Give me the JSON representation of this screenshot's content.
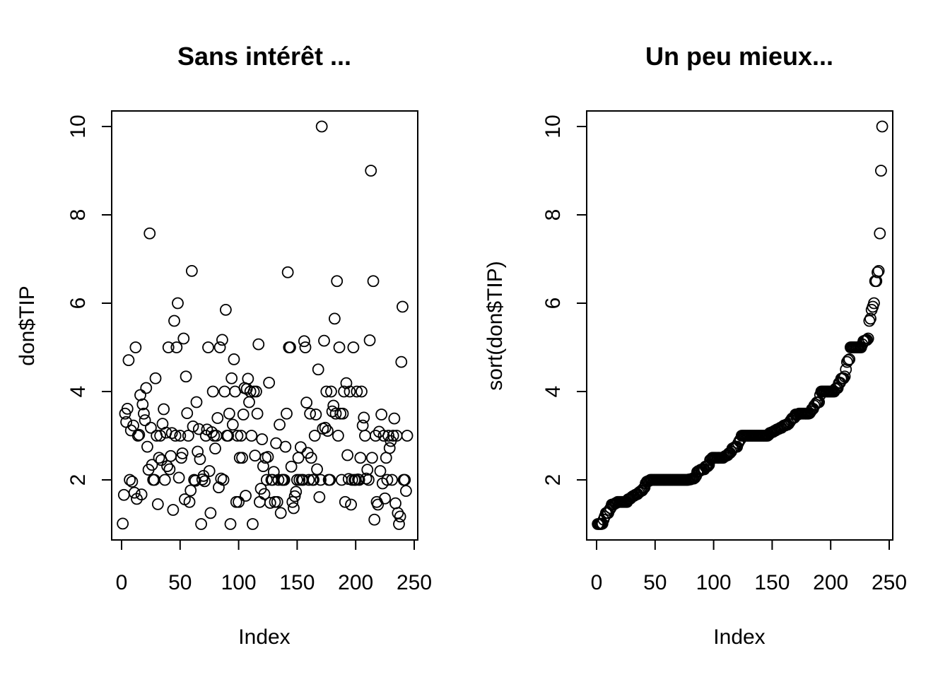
{
  "chart_data": [
    {
      "type": "scatter",
      "title": "Sans intérêt ...",
      "xlabel": "Index",
      "ylabel": "don$TIP",
      "xlim": [
        0,
        250
      ],
      "ylim": [
        1,
        10
      ],
      "x_ticks": [
        "0",
        "50",
        "100",
        "150",
        "200",
        "250"
      ],
      "y_ticks": [
        "2",
        "4",
        "6",
        "8",
        "10"
      ],
      "grid": false,
      "marker": "open-circle",
      "series": [
        {
          "x": [
            1,
            2,
            3,
            4,
            5,
            6,
            7,
            8,
            9,
            10,
            11,
            12,
            13,
            14,
            15,
            16,
            17,
            18,
            19,
            20,
            21,
            22,
            23,
            24,
            25,
            26,
            27,
            28,
            29,
            30,
            31,
            32,
            33,
            34,
            35,
            36,
            37,
            38,
            39,
            40,
            41,
            42,
            43,
            44,
            45,
            46,
            47,
            48,
            49,
            50,
            51,
            52,
            53,
            54,
            55,
            56,
            57,
            58,
            59,
            60,
            61,
            62,
            63,
            64,
            65,
            66,
            67,
            68,
            69,
            70,
            71,
            72,
            73,
            74,
            75,
            76,
            77,
            78,
            79,
            80,
            81,
            82,
            83,
            84,
            85,
            86,
            87,
            88,
            89,
            90,
            91,
            92,
            93,
            94,
            95,
            96,
            97,
            98,
            99,
            100,
            101,
            102,
            103,
            104,
            105,
            106,
            107,
            108,
            109,
            110,
            111,
            112,
            113,
            114,
            115,
            116,
            117,
            118,
            119,
            120,
            121,
            122,
            123,
            124,
            125,
            126,
            127,
            128,
            129,
            130,
            131,
            132,
            133,
            134,
            135,
            136,
            137,
            138,
            139,
            140,
            141,
            142,
            143,
            144,
            145,
            146,
            147,
            148,
            149,
            150,
            151,
            152,
            153,
            154,
            155,
            156,
            157,
            158,
            159,
            160,
            161,
            162,
            163,
            164,
            165,
            166,
            167,
            168,
            169,
            170,
            171,
            172,
            173,
            174,
            175,
            176,
            177,
            178,
            179,
            180,
            181,
            182,
            183,
            184,
            185,
            186,
            187,
            188,
            189,
            190,
            191,
            192,
            193,
            194,
            195,
            196,
            197,
            198,
            199,
            200,
            201,
            202,
            203,
            204,
            205,
            206,
            207,
            208,
            209,
            210,
            211,
            212,
            213,
            214,
            215,
            216,
            217,
            218,
            219,
            220,
            221,
            222,
            223,
            224,
            225,
            226,
            227,
            228,
            229,
            230,
            231,
            232,
            233,
            234,
            235,
            236,
            237,
            238,
            239,
            240,
            241,
            242,
            243,
            244
          ],
          "y": [
            1.01,
            1.66,
            3.5,
            3.31,
            3.61,
            4.71,
            2.0,
            3.12,
            1.96,
            3.23,
            1.71,
            5.0,
            1.57,
            3.0,
            3.02,
            3.92,
            1.67,
            3.71,
            3.5,
            3.35,
            4.08,
            2.75,
            2.23,
            7.58,
            3.18,
            2.34,
            2.0,
            2.0,
            4.3,
            3.0,
            1.45,
            2.5,
            3.0,
            2.45,
            3.27,
            3.6,
            2.0,
            3.07,
            2.31,
            5.0,
            2.24,
            2.54,
            3.06,
            1.32,
            5.6,
            3.0,
            5.0,
            6.0,
            2.05,
            3.0,
            2.5,
            2.6,
            5.2,
            1.56,
            4.34,
            3.51,
            3.0,
            1.5,
            1.76,
            6.73,
            3.21,
            2.0,
            1.98,
            3.76,
            2.64,
            3.15,
            2.47,
            1.0,
            2.01,
            2.09,
            1.97,
            3.0,
            3.14,
            5.0,
            2.2,
            1.25,
            3.08,
            4.0,
            3.0,
            2.71,
            3.0,
            3.4,
            1.83,
            5.0,
            2.03,
            5.17,
            2.0,
            4.0,
            5.85,
            3.0,
            3.0,
            3.5,
            1.0,
            4.3,
            3.25,
            4.73,
            4.0,
            1.5,
            3.0,
            1.5,
            2.5,
            3.0,
            2.5,
            3.48,
            4.08,
            1.64,
            4.06,
            4.29,
            3.76,
            4.0,
            3.0,
            1.0,
            4.0,
            2.55,
            4.0,
            3.5,
            5.07,
            1.5,
            1.8,
            2.92,
            2.31,
            1.68,
            2.5,
            2.0,
            2.52,
            4.2,
            1.48,
            2.0,
            2.0,
            2.18,
            1.5,
            2.83,
            1.5,
            2.0,
            3.25,
            1.25,
            2.0,
            2.0,
            2.0,
            2.75,
            3.5,
            6.7,
            5.0,
            5.0,
            2.3,
            1.5,
            1.36,
            1.63,
            1.73,
            2.0,
            2.5,
            2.0,
            2.74,
            2.0,
            2.0,
            5.14,
            5.0,
            3.75,
            2.61,
            2.0,
            3.5,
            2.5,
            2.0,
            2.0,
            3.0,
            3.48,
            2.24,
            4.5,
            1.61,
            2.0,
            10.0,
            3.16,
            5.15,
            3.18,
            4.0,
            3.11,
            2.0,
            2.0,
            4.0,
            3.55,
            3.68,
            5.65,
            3.5,
            6.5,
            3.0,
            5.0,
            3.5,
            2.0,
            3.5,
            4.0,
            1.5,
            4.19,
            2.56,
            2.02,
            4.0,
            1.44,
            2.0,
            5.0,
            2.0,
            2.0,
            4.0,
            2.01,
            2.0,
            2.5,
            4.0,
            3.23,
            3.41,
            3.0,
            2.03,
            2.23,
            2.0,
            5.16,
            9.0,
            2.5,
            6.5,
            1.1,
            3.0,
            1.5,
            1.44,
            3.09,
            2.2,
            3.48,
            1.92,
            3.0,
            1.58,
            2.5,
            2.0,
            3.0,
            2.72,
            2.88,
            2.0,
            3.0,
            3.39,
            1.47,
            3.0,
            1.25,
            1.0,
            1.17,
            4.67,
            5.92,
            2.0,
            2.0,
            1.75,
            3.0
          ]
        }
      ]
    },
    {
      "type": "scatter",
      "title": "Un peu mieux...",
      "xlabel": "Index",
      "ylabel": "sort(don$TIP)",
      "xlim": [
        0,
        250
      ],
      "ylim": [
        1,
        10
      ],
      "x_ticks": [
        "0",
        "50",
        "100",
        "150",
        "200",
        "250"
      ],
      "y_ticks": [
        "2",
        "4",
        "6",
        "8",
        "10"
      ],
      "grid": false,
      "marker": "open-circle",
      "sorted_of_panel": 0
    }
  ]
}
